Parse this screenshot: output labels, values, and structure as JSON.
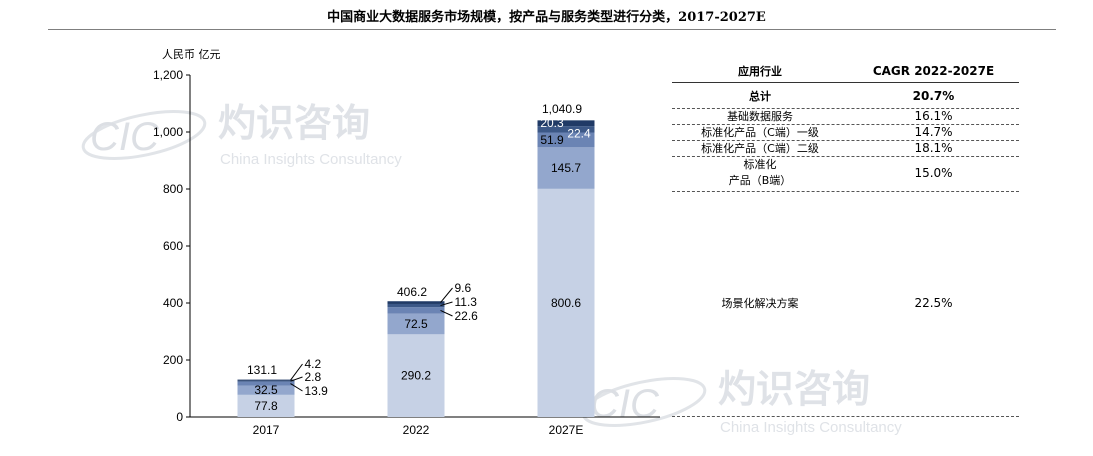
{
  "title": "中国商业大数据服务市场规模，按产品与服务类型进行分类，2017-2027E",
  "unit": "人民币 亿元",
  "colors": {
    "seg1": "#c6d1e5",
    "seg2": "#93a7cd",
    "seg3": "#6b84b4",
    "seg4": "#3c5887",
    "seg5": "#203a66",
    "axis": "#000000",
    "watermark": "#c0c6ce"
  },
  "chart_data": {
    "type": "bar",
    "stacked": true,
    "categories": [
      "2017",
      "2022",
      "2027E"
    ],
    "series": [
      {
        "values": [
          77.8,
          290.2,
          800.6
        ]
      },
      {
        "values": [
          32.5,
          72.5,
          145.7
        ]
      },
      {
        "values": [
          13.9,
          22.6,
          51.9
        ]
      },
      {
        "values": [
          2.8,
          11.3,
          22.4
        ]
      },
      {
        "values": [
          4.2,
          9.6,
          20.3
        ]
      }
    ],
    "totals": [
      "131.1",
      "406.2",
      "1,040.9"
    ],
    "data_labels": [
      [
        "77.8",
        "32.5",
        "13.9",
        "2.8",
        "4.2"
      ],
      [
        "290.2",
        "72.5",
        "22.6",
        "11.3",
        "9.6"
      ],
      [
        "800.6",
        "145.7",
        "51.9",
        "22.4",
        "20.3"
      ]
    ],
    "ylim": [
      0,
      1200
    ],
    "yticks": [
      "0",
      "200",
      "400",
      "600",
      "800",
      "1,000",
      "1,200"
    ],
    "ytick_values": [
      0,
      200,
      400,
      600,
      800,
      1000,
      1200
    ],
    "grid": false
  },
  "table": {
    "header": [
      "应用行业",
      "CAGR 2022-2027E"
    ],
    "rows": [
      {
        "label": "总计",
        "value": "20.7%"
      },
      {
        "label": "基础数据服务",
        "value": "16.1%"
      },
      {
        "label": "标准化产品（C端）一级",
        "value": "14.7%"
      },
      {
        "label": "标准化产品（C端）二级",
        "value": "18.1%"
      },
      {
        "label_line1": "标准化",
        "label_line2": "产品（B端）",
        "value": "15.0%"
      },
      {
        "label": "场景化解决方案",
        "value": "22.5%"
      }
    ]
  },
  "watermark": {
    "logo": "CIC",
    "cn": "灼识咨询",
    "en": "China Insights Consultancy"
  }
}
